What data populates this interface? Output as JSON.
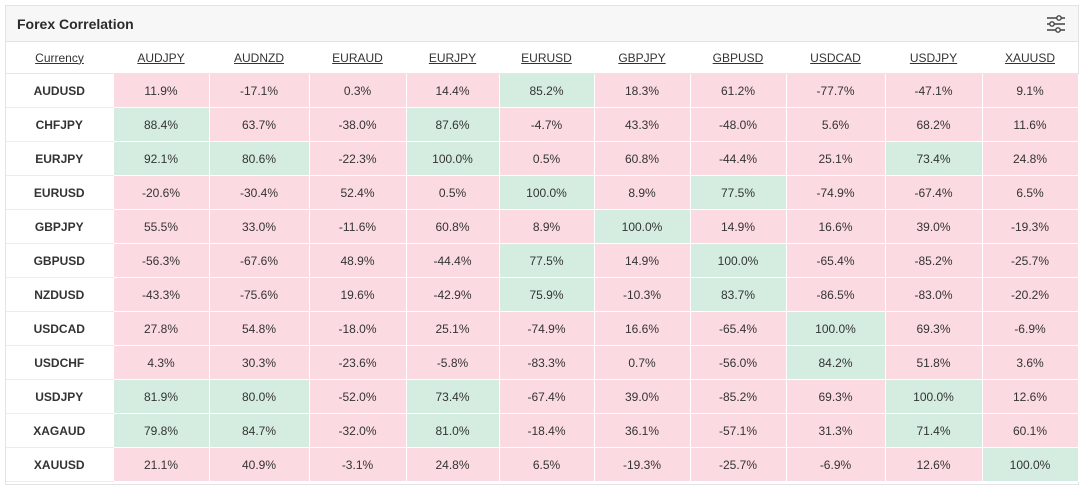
{
  "widget": {
    "title": "Forex Correlation",
    "settings_icon": "sliders-icon"
  },
  "colors": {
    "low_correlation_cell": "#fbdbe1",
    "high_correlation_cell": "#d5ede0",
    "header_bg": "#f7f7f7"
  },
  "table": {
    "corner_label": "Currency",
    "columns": [
      "AUDJPY",
      "AUDNZD",
      "EURAUD",
      "EURJPY",
      "EURUSD",
      "GBPJPY",
      "GBPUSD",
      "USDCAD",
      "USDJPY",
      "XAUUSD"
    ],
    "rows": [
      {
        "pair": "AUDUSD",
        "values": [
          "11.9%",
          "-17.1%",
          "0.3%",
          "14.4%",
          "85.2%",
          "18.3%",
          "61.2%",
          "-77.7%",
          "-47.1%",
          "9.1%"
        ],
        "high": [
          false,
          false,
          false,
          false,
          true,
          false,
          false,
          false,
          false,
          false
        ]
      },
      {
        "pair": "CHFJPY",
        "values": [
          "88.4%",
          "63.7%",
          "-38.0%",
          "87.6%",
          "-4.7%",
          "43.3%",
          "-48.0%",
          "5.6%",
          "68.2%",
          "11.6%"
        ],
        "high": [
          true,
          false,
          false,
          true,
          false,
          false,
          false,
          false,
          false,
          false
        ]
      },
      {
        "pair": "EURJPY",
        "values": [
          "92.1%",
          "80.6%",
          "-22.3%",
          "100.0%",
          "0.5%",
          "60.8%",
          "-44.4%",
          "25.1%",
          "73.4%",
          "24.8%"
        ],
        "high": [
          true,
          true,
          false,
          true,
          false,
          false,
          false,
          false,
          true,
          false
        ]
      },
      {
        "pair": "EURUSD",
        "values": [
          "-20.6%",
          "-30.4%",
          "52.4%",
          "0.5%",
          "100.0%",
          "8.9%",
          "77.5%",
          "-74.9%",
          "-67.4%",
          "6.5%"
        ],
        "high": [
          false,
          false,
          false,
          false,
          true,
          false,
          true,
          false,
          false,
          false
        ]
      },
      {
        "pair": "GBPJPY",
        "values": [
          "55.5%",
          "33.0%",
          "-11.6%",
          "60.8%",
          "8.9%",
          "100.0%",
          "14.9%",
          "16.6%",
          "39.0%",
          "-19.3%"
        ],
        "high": [
          false,
          false,
          false,
          false,
          false,
          true,
          false,
          false,
          false,
          false
        ]
      },
      {
        "pair": "GBPUSD",
        "values": [
          "-56.3%",
          "-67.6%",
          "48.9%",
          "-44.4%",
          "77.5%",
          "14.9%",
          "100.0%",
          "-65.4%",
          "-85.2%",
          "-25.7%"
        ],
        "high": [
          false,
          false,
          false,
          false,
          true,
          false,
          true,
          false,
          false,
          false
        ]
      },
      {
        "pair": "NZDUSD",
        "values": [
          "-43.3%",
          "-75.6%",
          "19.6%",
          "-42.9%",
          "75.9%",
          "-10.3%",
          "83.7%",
          "-86.5%",
          "-83.0%",
          "-20.2%"
        ],
        "high": [
          false,
          false,
          false,
          false,
          true,
          false,
          true,
          false,
          false,
          false
        ]
      },
      {
        "pair": "USDCAD",
        "values": [
          "27.8%",
          "54.8%",
          "-18.0%",
          "25.1%",
          "-74.9%",
          "16.6%",
          "-65.4%",
          "100.0%",
          "69.3%",
          "-6.9%"
        ],
        "high": [
          false,
          false,
          false,
          false,
          false,
          false,
          false,
          true,
          false,
          false
        ]
      },
      {
        "pair": "USDCHF",
        "values": [
          "4.3%",
          "30.3%",
          "-23.6%",
          "-5.8%",
          "-83.3%",
          "0.7%",
          "-56.0%",
          "84.2%",
          "51.8%",
          "3.6%"
        ],
        "high": [
          false,
          false,
          false,
          false,
          false,
          false,
          false,
          true,
          false,
          false
        ]
      },
      {
        "pair": "USDJPY",
        "values": [
          "81.9%",
          "80.0%",
          "-52.0%",
          "73.4%",
          "-67.4%",
          "39.0%",
          "-85.2%",
          "69.3%",
          "100.0%",
          "12.6%"
        ],
        "high": [
          true,
          true,
          false,
          true,
          false,
          false,
          false,
          false,
          true,
          false
        ]
      },
      {
        "pair": "XAGAUD",
        "values": [
          "79.8%",
          "84.7%",
          "-32.0%",
          "81.0%",
          "-18.4%",
          "36.1%",
          "-57.1%",
          "31.3%",
          "71.4%",
          "60.1%"
        ],
        "high": [
          true,
          true,
          false,
          true,
          false,
          false,
          false,
          false,
          true,
          false
        ]
      },
      {
        "pair": "XAUUSD",
        "values": [
          "21.1%",
          "40.9%",
          "-3.1%",
          "24.8%",
          "6.5%",
          "-19.3%",
          "-25.7%",
          "-6.9%",
          "12.6%",
          "100.0%"
        ],
        "high": [
          false,
          false,
          false,
          false,
          false,
          false,
          false,
          false,
          false,
          true
        ]
      }
    ]
  }
}
